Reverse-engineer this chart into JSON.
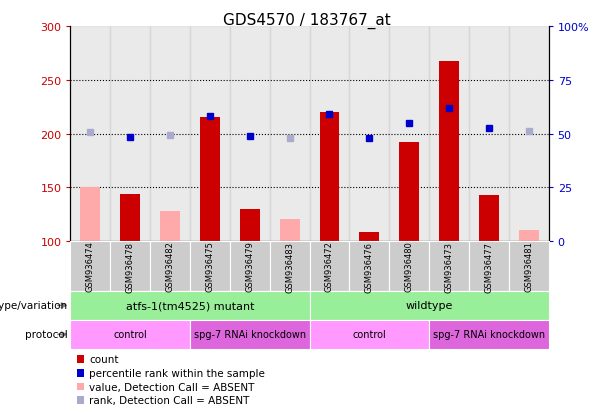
{
  "title": "GDS4570 / 183767_at",
  "samples": [
    "GSM936474",
    "GSM936478",
    "GSM936482",
    "GSM936475",
    "GSM936479",
    "GSM936483",
    "GSM936472",
    "GSM936476",
    "GSM936480",
    "GSM936473",
    "GSM936477",
    "GSM936481"
  ],
  "count_values": [
    null,
    144,
    null,
    215,
    130,
    null,
    220,
    109,
    192,
    267,
    143,
    null
  ],
  "count_absent": [
    150,
    null,
    128,
    null,
    null,
    121,
    null,
    null,
    null,
    null,
    null,
    110
  ],
  "rank_values": [
    null,
    197,
    null,
    216,
    198,
    null,
    218,
    196,
    210,
    224,
    205,
    null
  ],
  "rank_absent": [
    201,
    null,
    199,
    null,
    null,
    196,
    null,
    null,
    null,
    null,
    null,
    202
  ],
  "ylim_left": [
    100,
    300
  ],
  "yticks_left": [
    100,
    150,
    200,
    250,
    300
  ],
  "ytick_labels_left": [
    "100",
    "150",
    "200",
    "250",
    "300"
  ],
  "yticks_right": [
    0,
    25,
    50,
    75,
    100
  ],
  "ytick_labels_right": [
    "0",
    "25",
    "50",
    "75",
    "100%"
  ],
  "color_count": "#cc0000",
  "color_count_absent": "#ffaaaa",
  "color_rank": "#0000cc",
  "color_rank_absent": "#aaaacc",
  "bar_width": 0.5,
  "genotype_groups": [
    {
      "label": "atfs-1(tm4525) mutant",
      "start": 0,
      "end": 6,
      "color": "#99ee99"
    },
    {
      "label": "wildtype",
      "start": 6,
      "end": 12,
      "color": "#99ee99"
    }
  ],
  "protocol_groups": [
    {
      "label": "control",
      "start": 0,
      "end": 3,
      "color": "#ff99ff"
    },
    {
      "label": "spg-7 RNAi knockdown",
      "start": 3,
      "end": 6,
      "color": "#dd66dd"
    },
    {
      "label": "control",
      "start": 6,
      "end": 9,
      "color": "#ff99ff"
    },
    {
      "label": "spg-7 RNAi knockdown",
      "start": 9,
      "end": 12,
      "color": "#dd66dd"
    }
  ],
  "legend_items": [
    {
      "label": "count",
      "color": "#cc0000"
    },
    {
      "label": "percentile rank within the sample",
      "color": "#0000cc"
    },
    {
      "label": "value, Detection Call = ABSENT",
      "color": "#ffaaaa"
    },
    {
      "label": "rank, Detection Call = ABSENT",
      "color": "#aaaacc"
    }
  ],
  "col_bg_color": "#cccccc",
  "arrow_color": "#808080"
}
